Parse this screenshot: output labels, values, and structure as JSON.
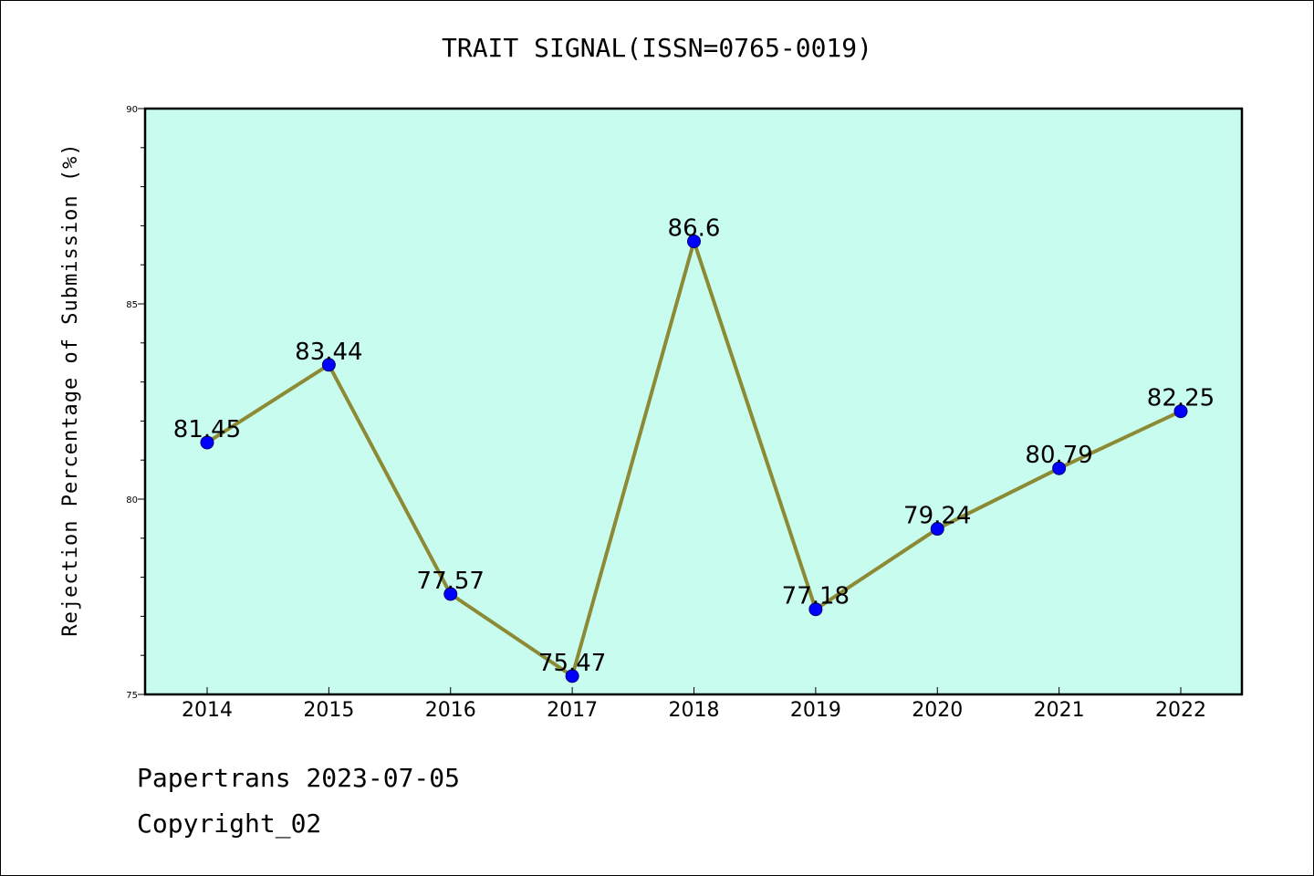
{
  "chart_data": {
    "type": "line",
    "title": "TRAIT SIGNAL(ISSN=0765-0019)",
    "xlabel": "",
    "ylabel": "Rejection Percentage of Submission (%)",
    "categories": [
      "2014",
      "2015",
      "2016",
      "2017",
      "2018",
      "2019",
      "2020",
      "2021",
      "2022"
    ],
    "series": [
      {
        "values": [
          81.45,
          83.44,
          77.57,
          75.47,
          86.6,
          77.18,
          79.24,
          80.79,
          82.25
        ],
        "data_labels": [
          "81.45",
          "83.44",
          "77.57",
          "75.47",
          "86.6",
          "77.18",
          "79.24",
          "80.79",
          "82.25"
        ]
      }
    ],
    "ylim": [
      75,
      90
    ],
    "yticks": [
      75,
      80,
      85,
      90
    ],
    "ytick_labels": [
      "75",
      "80",
      "85",
      "90"
    ],
    "grid": false,
    "legend": "none",
    "colors": {
      "plot_background": "#c8fcef",
      "line": "#8c8a34",
      "marker": "#0000ff",
      "axis": "#000000"
    }
  },
  "footer": {
    "line1": "Papertrans 2023-07-05",
    "line2": "Copyright_02"
  }
}
